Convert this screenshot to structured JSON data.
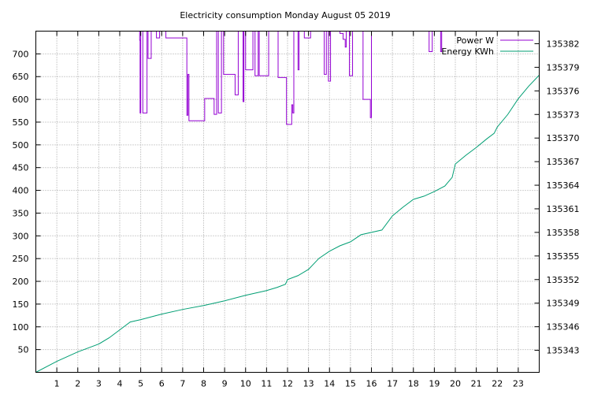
{
  "chart_data": {
    "type": "line",
    "title": "Electricity consumption Monday August 05 2019",
    "grid": true,
    "legend_position": "top-right",
    "x": {
      "range": [
        0,
        24
      ],
      "ticks": [
        1,
        2,
        3,
        4,
        5,
        6,
        7,
        8,
        9,
        10,
        11,
        12,
        13,
        14,
        15,
        16,
        17,
        18,
        19,
        20,
        21,
        22,
        23
      ],
      "tick_labels": [
        "1",
        "2",
        "3",
        "4",
        "5",
        "6",
        "7",
        "8",
        "9",
        "10",
        "11",
        "12",
        "13",
        "14",
        "15",
        "16",
        "17",
        "18",
        "19",
        "20",
        "21",
        "22",
        "23"
      ]
    },
    "y_left": {
      "range": [
        0,
        750
      ],
      "ticks": [
        50,
        100,
        150,
        200,
        250,
        300,
        350,
        400,
        450,
        500,
        550,
        600,
        650,
        700
      ],
      "tick_labels": [
        "50",
        "100",
        "150",
        "200",
        "250",
        "300",
        "350",
        "400",
        "450",
        "500",
        "550",
        "600",
        "650",
        "700"
      ]
    },
    "y_right": {
      "range": [
        135340.2,
        135383.6
      ],
      "ticks": [
        135343,
        135346,
        135349,
        135352,
        135355,
        135358,
        135361,
        135364,
        135367,
        135370,
        135373,
        135376,
        135379,
        135382
      ],
      "tick_labels": [
        "135343",
        "135346",
        "135349",
        "135352",
        "135355",
        "135358",
        "135361",
        "135364",
        "135367",
        "135370",
        "135373",
        "135376",
        "135379",
        "135382"
      ]
    },
    "series": [
      {
        "name": "Power W",
        "axis": "left",
        "color": "#9400d3",
        "step": true,
        "x": [
          0.0,
          4.95,
          4.97,
          5.0,
          5.1,
          5.3,
          5.35,
          5.5,
          5.75,
          5.9,
          6.05,
          6.2,
          7.0,
          7.2,
          7.25,
          7.3,
          7.35,
          8.05,
          8.15,
          8.5,
          8.62,
          8.7,
          8.85,
          8.95,
          9.4,
          9.5,
          9.65,
          9.88,
          9.92,
          10.0,
          10.05,
          10.35,
          10.45,
          10.55,
          10.6,
          10.65,
          11.05,
          11.1,
          11.55,
          11.6,
          11.95,
          12.2,
          12.25,
          12.3,
          12.45,
          12.5,
          12.55,
          12.6,
          12.65,
          12.8,
          13.1,
          13.7,
          13.75,
          13.85,
          13.95,
          14.05,
          14.2,
          14.5,
          14.65,
          14.75,
          14.8,
          14.9,
          14.95,
          15.1,
          15.15,
          15.2,
          15.5,
          15.55,
          15.6,
          15.9,
          15.95,
          16.0,
          18.4,
          18.5,
          18.6,
          18.75,
          18.8,
          18.9,
          19.0,
          19.3,
          19.35,
          19.5,
          19.55,
          24.0
        ],
        "y": [
          760,
          730,
          570,
          760,
          570,
          760,
          690,
          760,
          735,
          760,
          760,
          735,
          735,
          565,
          655,
          553,
          553,
          602,
          602,
          567,
          760,
          570,
          760,
          655,
          655,
          610,
          760,
          595,
          760,
          665,
          665,
          760,
          652,
          652,
          760,
          652,
          652,
          760,
          648,
          648,
          545,
          588,
          570,
          760,
          760,
          665,
          760,
          760,
          760,
          735,
          760,
          760,
          655,
          760,
          640,
          760,
          760,
          745,
          732,
          715,
          760,
          755,
          652,
          760,
          760,
          760,
          760,
          760,
          600,
          600,
          560,
          760,
          760,
          760,
          760,
          705,
          705,
          760,
          760,
          705,
          760,
          760,
          760,
          760
        ]
      },
      {
        "name": "Energy KWh",
        "axis": "right",
        "color": "#009e73",
        "step": false,
        "x": [
          0,
          1,
          2,
          3,
          3.5,
          4,
          4.5,
          5,
          6,
          7,
          8,
          9,
          10,
          10.5,
          11,
          11.5,
          11.9,
          12,
          12.5,
          13,
          13.5,
          14,
          14.5,
          15,
          15.5,
          16.5,
          17,
          17.5,
          18,
          18.5,
          19,
          19.5,
          19.85,
          20,
          20.5,
          21,
          21.5,
          21.85,
          22,
          22.5,
          23,
          23.5,
          24
        ],
        "y": [
          135340.2,
          135341.6,
          135342.8,
          135343.8,
          135344.6,
          135345.6,
          135346.6,
          135346.9,
          135347.6,
          135348.2,
          135348.7,
          135349.3,
          135350.0,
          135350.3,
          135350.6,
          135351.0,
          135351.4,
          135352.0,
          135352.5,
          135353.3,
          135354.7,
          135355.6,
          135356.3,
          135356.8,
          135357.7,
          135358.3,
          135360.1,
          135361.2,
          135362.2,
          135362.6,
          135363.2,
          135363.9,
          135365.0,
          135366.7,
          135367.8,
          135368.8,
          135369.9,
          135370.6,
          135371.4,
          135373.0,
          135375.0,
          135376.6,
          135378.0
        ]
      }
    ]
  }
}
